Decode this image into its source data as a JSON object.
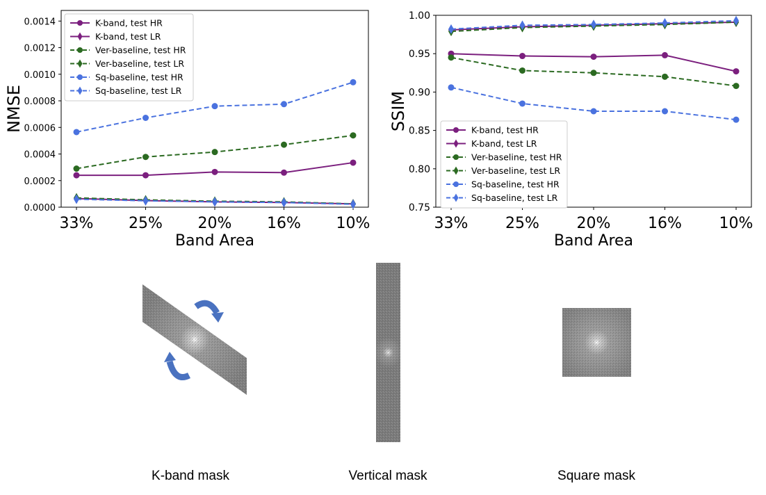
{
  "chart_data": [
    {
      "type": "line",
      "title": "",
      "xlabel": "Band Area",
      "ylabel": "NMSE",
      "categories": [
        "33%",
        "25%",
        "20%",
        "16%",
        "10%"
      ],
      "ylim": [
        0,
        0.00148
      ],
      "yticks": [
        "0.0000",
        "0.0002",
        "0.0004",
        "0.0006",
        "0.0008",
        "0.0010",
        "0.0012",
        "0.0014"
      ],
      "ytick_values": [
        0,
        0.0002,
        0.0004,
        0.0006,
        0.0008,
        0.001,
        0.0012,
        0.0014
      ],
      "legend": "top-left",
      "grid": false,
      "series": [
        {
          "name": "K-band, test HR",
          "color": "#7b1f7e",
          "dash": "solid",
          "marker": "circle",
          "values": [
            0.00024,
            0.00024,
            0.000265,
            0.00026,
            0.000335
          ]
        },
        {
          "name": "K-band, test LR",
          "color": "#7b1f7e",
          "dash": "solid",
          "marker": "diamond",
          "values": [
            6.5e-05,
            5e-05,
            4e-05,
            3.5e-05,
            2.5e-05
          ]
        },
        {
          "name": "Ver-baseline, test HR",
          "color": "#2b6a21",
          "dash": "dashed",
          "marker": "circle",
          "values": [
            0.00029,
            0.000378,
            0.000415,
            0.00047,
            0.00054
          ]
        },
        {
          "name": "Ver-baseline, test LR",
          "color": "#2b6a21",
          "dash": "dashed",
          "marker": "diamond",
          "values": [
            7e-05,
            5.5e-05,
            4.5e-05,
            4e-05,
            2.5e-05
          ]
        },
        {
          "name": "Sq-baseline, test HR",
          "color": "#4a72df",
          "dash": "dashed",
          "marker": "circle",
          "values": [
            0.000565,
            0.000672,
            0.00076,
            0.000775,
            0.00094
          ]
        },
        {
          "name": "Sq-baseline, test LR",
          "color": "#4a72df",
          "dash": "dashed",
          "marker": "diamond",
          "values": [
            6e-05,
            4.8e-05,
            4e-05,
            3.5e-05,
            2.2e-05
          ]
        }
      ]
    },
    {
      "type": "line",
      "title": "",
      "xlabel": "Band Area",
      "ylabel": "SSIM",
      "categories": [
        "33%",
        "25%",
        "20%",
        "16%",
        "10%"
      ],
      "ylim": [
        0.75,
        1.0
      ],
      "yticks": [
        "0.75",
        "0.80",
        "0.85",
        "0.90",
        "0.95",
        "1.00"
      ],
      "ytick_values": [
        0.75,
        0.8,
        0.85,
        0.9,
        0.95,
        1.0
      ],
      "legend": "lower-left",
      "grid": false,
      "series": [
        {
          "name": "K-band, test HR",
          "color": "#7b1f7e",
          "dash": "solid",
          "marker": "circle",
          "values": [
            0.95,
            0.947,
            0.946,
            0.948,
            0.927
          ]
        },
        {
          "name": "K-band, test LR",
          "color": "#7b1f7e",
          "dash": "solid",
          "marker": "diamond",
          "values": [
            0.981,
            0.985,
            0.987,
            0.989,
            0.991
          ]
        },
        {
          "name": "Ver-baseline, test HR",
          "color": "#2b6a21",
          "dash": "dashed",
          "marker": "circle",
          "values": [
            0.945,
            0.928,
            0.925,
            0.92,
            0.908
          ]
        },
        {
          "name": "Ver-baseline, test LR",
          "color": "#2b6a21",
          "dash": "dashed",
          "marker": "diamond",
          "values": [
            0.979,
            0.984,
            0.986,
            0.988,
            0.991
          ]
        },
        {
          "name": "Sq-baseline, test HR",
          "color": "#4a72df",
          "dash": "dashed",
          "marker": "circle",
          "values": [
            0.906,
            0.885,
            0.875,
            0.875,
            0.864
          ]
        },
        {
          "name": "Sq-baseline, test LR",
          "color": "#4a72df",
          "dash": "dashed",
          "marker": "diamond",
          "values": [
            0.982,
            0.987,
            0.988,
            0.99,
            0.993
          ]
        }
      ]
    }
  ],
  "masks": [
    {
      "name": "kband",
      "caption": "K-band mask",
      "arrow_color": "#4a72c0"
    },
    {
      "name": "vertical",
      "caption": "Vertical mask"
    },
    {
      "name": "square",
      "caption": "Square mask"
    }
  ]
}
